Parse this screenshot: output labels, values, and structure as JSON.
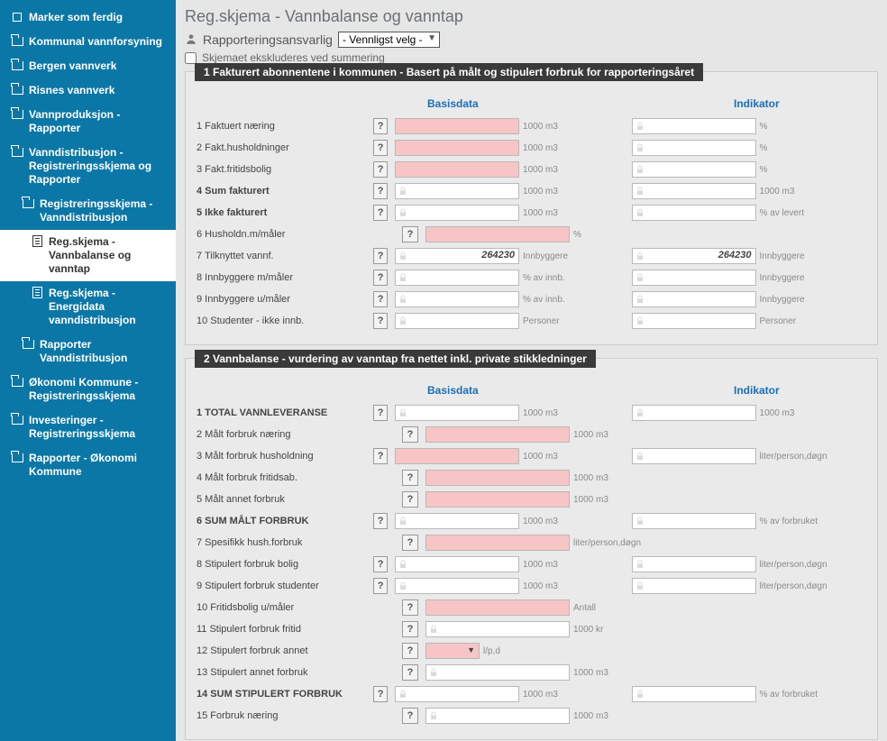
{
  "colors": {
    "sidebar_bg": "#0b77a6",
    "section_title_bg": "#3a3a3a",
    "pink_field": "#f7c5c5",
    "header_link": "#1b6fb5"
  },
  "sidebar": {
    "marker": "Marker som ferdig",
    "items": [
      {
        "label": "Kommunal vannforsyning",
        "type": "folder",
        "level": 0
      },
      {
        "label": "Bergen vannverk",
        "type": "folder",
        "level": 0
      },
      {
        "label": "Risnes vannverk",
        "type": "folder",
        "level": 0
      },
      {
        "label": "Vannproduksjon - Rapporter",
        "type": "folder",
        "level": 0
      },
      {
        "label": "Vanndistribusjon - Registreringsskjema og Rapporter",
        "type": "folder",
        "level": 0
      },
      {
        "label": "Registreringsskjema - Vanndistribusjon",
        "type": "folder",
        "level": 1
      },
      {
        "label": "Reg.skjema - Vannbalanse og vanntap",
        "type": "file",
        "level": 2,
        "selected": true
      },
      {
        "label": "Reg.skjema - Energidata vanndistribusjon",
        "type": "file",
        "level": 2
      },
      {
        "label": "Rapporter Vanndistribusjon",
        "type": "folder",
        "level": 1
      },
      {
        "label": "Økonomi Kommune - Registreringsskjema",
        "type": "folder",
        "level": 0
      },
      {
        "label": "Investeringer - Registreringsskjema",
        "type": "folder",
        "level": 0
      },
      {
        "label": "Rapporter - Økonomi Kommune",
        "type": "folder",
        "level": 0
      }
    ]
  },
  "page": {
    "title": "Reg.skjema - Vannbalanse og vanntap",
    "responsible_label": "Rapporteringsansvarlig",
    "responsible_value": "- Vennligst velg -",
    "exclude_label": "Skjemaet ekskluderes ved summering"
  },
  "section1": {
    "title": "1  Fakturert abonnentene i kommunen - Basert på målt og stipulert forbruk for rapporteringsåret",
    "basis_header": "Basisdata",
    "ind_header": "Indikator",
    "rows": [
      {
        "n": "1",
        "label": "Faktuert næring",
        "bold": false,
        "basis": {
          "pink": true,
          "unit": "1000 m3"
        },
        "ind": {
          "show": true,
          "unit": "%"
        }
      },
      {
        "n": "2",
        "label": "Fakt.husholdninger",
        "bold": false,
        "basis": {
          "pink": true,
          "unit": "1000 m3"
        },
        "ind": {
          "show": true,
          "unit": "%"
        }
      },
      {
        "n": "3",
        "label": "Fakt.fritidsbolig",
        "bold": false,
        "basis": {
          "pink": true,
          "unit": "1000 m3"
        },
        "ind": {
          "show": true,
          "unit": "%"
        }
      },
      {
        "n": "4",
        "label": "Sum fakturert",
        "bold": true,
        "basis": {
          "pink": false,
          "unit": "1000 m3"
        },
        "ind": {
          "show": true,
          "unit": "1000 m3"
        }
      },
      {
        "n": "5",
        "label": "Ikke fakturert",
        "bold": true,
        "basis": {
          "pink": false,
          "unit": "1000 m3"
        },
        "ind": {
          "show": true,
          "unit": "% av levert"
        }
      },
      {
        "n": "6",
        "label": "Husholdn.m/måler",
        "bold": false,
        "basis": {
          "pink": true,
          "unit": "%"
        },
        "ind": {
          "show": false
        }
      },
      {
        "n": "7",
        "label": "Tilknyttet vannf.",
        "bold": false,
        "basis": {
          "pink": false,
          "unit": "Innbyggere",
          "value": "264230"
        },
        "ind": {
          "show": true,
          "unit": "Innbyggere",
          "value": "264230"
        }
      },
      {
        "n": "8",
        "label": "Innbyggere m/måler",
        "bold": false,
        "basis": {
          "pink": false,
          "unit": "% av innb."
        },
        "ind": {
          "show": true,
          "unit": "Innbyggere"
        }
      },
      {
        "n": "9",
        "label": "Innbyggere u/måler",
        "bold": false,
        "basis": {
          "pink": false,
          "unit": "% av innb."
        },
        "ind": {
          "show": true,
          "unit": "Innbyggere"
        }
      },
      {
        "n": "10",
        "label": "Studenter - ikke innb.",
        "bold": false,
        "basis": {
          "pink": false,
          "unit": "Personer"
        },
        "ind": {
          "show": true,
          "unit": "Personer"
        }
      }
    ]
  },
  "section2": {
    "title": "2  Vannbalanse - vurdering av vanntap fra nettet inkl. private stikkledninger",
    "basis_header": "Basisdata",
    "ind_header": "Indikator",
    "rows": [
      {
        "n": "1",
        "label": "TOTAL VANNLEVERANSE",
        "bold": true,
        "basis": {
          "pink": false,
          "unit": "1000 m3"
        },
        "ind": {
          "show": true,
          "unit": "1000 m3"
        }
      },
      {
        "n": "2",
        "label": "Målt forbruk næring",
        "bold": false,
        "basis": {
          "pink": true,
          "unit": "1000 m3"
        },
        "ind": {
          "show": false
        }
      },
      {
        "n": "3",
        "label": "Målt forbruk husholdning",
        "bold": false,
        "basis": {
          "pink": true,
          "unit": "1000 m3"
        },
        "ind": {
          "show": true,
          "unit": "liter/person,døgn"
        }
      },
      {
        "n": "4",
        "label": "Målt forbruk fritidsab.",
        "bold": false,
        "basis": {
          "pink": true,
          "unit": "1000 m3"
        },
        "ind": {
          "show": false
        }
      },
      {
        "n": "5",
        "label": "Målt annet forbruk",
        "bold": false,
        "basis": {
          "pink": true,
          "unit": "1000 m3"
        },
        "ind": {
          "show": false
        }
      },
      {
        "n": "6",
        "label": "SUM MÅLT FORBRUK",
        "bold": true,
        "basis": {
          "pink": false,
          "unit": "1000 m3"
        },
        "ind": {
          "show": true,
          "unit": "% av forbruket"
        }
      },
      {
        "n": "7",
        "label": "Spesifikk hush.forbruk",
        "bold": false,
        "basis": {
          "pink": true,
          "unit": "liter/person,døgn"
        },
        "ind": {
          "show": false
        }
      },
      {
        "n": "8",
        "label": "Stipulert forbruk bolig",
        "bold": false,
        "basis": {
          "pink": false,
          "unit": "1000 m3"
        },
        "ind": {
          "show": true,
          "unit": "liter/person,døgn"
        }
      },
      {
        "n": "9",
        "label": "Stipulert forbruk studenter",
        "bold": false,
        "basis": {
          "pink": false,
          "unit": "1000 m3"
        },
        "ind": {
          "show": true,
          "unit": "liter/person,døgn"
        }
      },
      {
        "n": "10",
        "label": "Fritidsbolig u/måler",
        "bold": false,
        "basis": {
          "pink": true,
          "unit": "Antall"
        },
        "ind": {
          "show": false
        }
      },
      {
        "n": "11",
        "label": "Stipulert forbruk fritid",
        "bold": false,
        "basis": {
          "pink": false,
          "unit": "1000 kr"
        },
        "ind": {
          "show": false
        }
      },
      {
        "n": "12",
        "label": "Stipulert forbruk annet",
        "bold": false,
        "basis": {
          "select": true,
          "unit": "l/p,d"
        },
        "ind": {
          "show": false
        }
      },
      {
        "n": "13",
        "label": "Stipulert annet forbruk",
        "bold": false,
        "basis": {
          "pink": false,
          "unit": "1000 m3"
        },
        "ind": {
          "show": false
        }
      },
      {
        "n": "14",
        "label": "SUM STIPULERT FORBRUK",
        "bold": true,
        "basis": {
          "pink": false,
          "unit": "1000 m3"
        },
        "ind": {
          "show": true,
          "unit": "% av forbruket"
        }
      },
      {
        "n": "15",
        "label": "Forbruk næring",
        "bold": false,
        "basis": {
          "pink": false,
          "unit": "1000 m3"
        },
        "ind": {
          "show": false
        }
      }
    ]
  }
}
